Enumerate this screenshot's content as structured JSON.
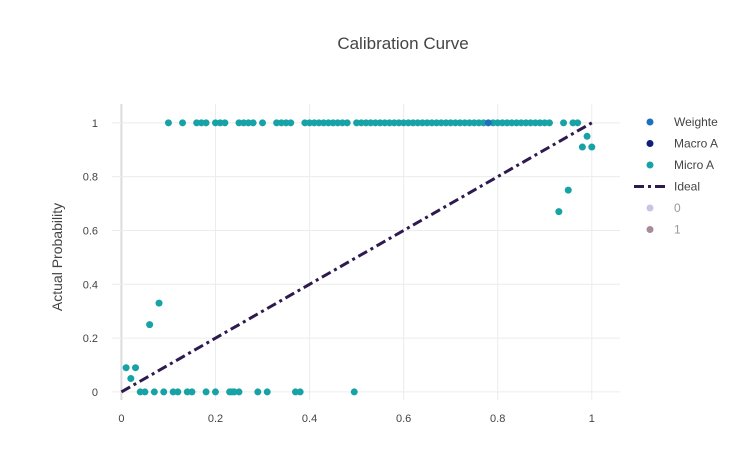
{
  "chart_data": {
    "type": "scatter",
    "title": "Calibration Curve",
    "xlabel": "",
    "ylabel": "Actual Probability",
    "xlim": [
      -0.02,
      1.06
    ],
    "ylim": [
      -0.03,
      1.07
    ],
    "x_ticks": [
      0,
      0.2,
      0.4,
      0.6,
      0.8,
      1
    ],
    "x_tick_labels": [
      "0",
      "0.2",
      "0.4",
      "0.6",
      "0.8",
      "1"
    ],
    "y_ticks": [
      0,
      0.2,
      0.4,
      0.6,
      0.8,
      1
    ],
    "y_tick_labels": [
      "0",
      "0.2",
      "0.4",
      "0.6",
      "0.8",
      "1"
    ],
    "grid": true,
    "legend_position": "right",
    "series": [
      {
        "name": "Weighted Avg",
        "legend_label": "Weighte",
        "color": "#1f6fba",
        "marker": "circle",
        "points": [
          [
            0.78,
            1
          ]
        ]
      },
      {
        "name": "Macro Avg",
        "legend_label": "Macro A",
        "color": "#0d1f7a",
        "marker": "circle",
        "points": []
      },
      {
        "name": "Micro Avg",
        "legend_label": "Micro A",
        "color": "#17a2a6",
        "marker": "circle",
        "points": [
          [
            0.01,
            0.09
          ],
          [
            0.03,
            0.09
          ],
          [
            0.02,
            0.05
          ],
          [
            0.06,
            0.25
          ],
          [
            0.08,
            0.33
          ],
          [
            0.04,
            0
          ],
          [
            0.05,
            0
          ],
          [
            0.07,
            0
          ],
          [
            0.09,
            0
          ],
          [
            0.11,
            0
          ],
          [
            0.12,
            0
          ],
          [
            0.14,
            0
          ],
          [
            0.15,
            0
          ],
          [
            0.18,
            0
          ],
          [
            0.2,
            0
          ],
          [
            0.23,
            0
          ],
          [
            0.235,
            0
          ],
          [
            0.24,
            0
          ],
          [
            0.25,
            0
          ],
          [
            0.29,
            0
          ],
          [
            0.31,
            0
          ],
          [
            0.37,
            0
          ],
          [
            0.38,
            0
          ],
          [
            0.495,
            0
          ],
          [
            0.1,
            1
          ],
          [
            0.13,
            1
          ],
          [
            0.16,
            1
          ],
          [
            0.17,
            1
          ],
          [
            0.18,
            1
          ],
          [
            0.2,
            1
          ],
          [
            0.21,
            1
          ],
          [
            0.22,
            1
          ],
          [
            0.25,
            1
          ],
          [
            0.26,
            1
          ],
          [
            0.27,
            1
          ],
          [
            0.28,
            1
          ],
          [
            0.3,
            1
          ],
          [
            0.33,
            1
          ],
          [
            0.34,
            1
          ],
          [
            0.35,
            1
          ],
          [
            0.36,
            1
          ],
          [
            0.39,
            1
          ],
          [
            0.4,
            1
          ],
          [
            0.41,
            1
          ],
          [
            0.42,
            1
          ],
          [
            0.43,
            1
          ],
          [
            0.44,
            1
          ],
          [
            0.45,
            1
          ],
          [
            0.46,
            1
          ],
          [
            0.47,
            1
          ],
          [
            0.48,
            1
          ],
          [
            0.5,
            1
          ],
          [
            0.51,
            1
          ],
          [
            0.52,
            1
          ],
          [
            0.53,
            1
          ],
          [
            0.54,
            1
          ],
          [
            0.55,
            1
          ],
          [
            0.56,
            1
          ],
          [
            0.57,
            1
          ],
          [
            0.58,
            1
          ],
          [
            0.59,
            1
          ],
          [
            0.6,
            1
          ],
          [
            0.61,
            1
          ],
          [
            0.62,
            1
          ],
          [
            0.63,
            1
          ],
          [
            0.64,
            1
          ],
          [
            0.65,
            1
          ],
          [
            0.66,
            1
          ],
          [
            0.67,
            1
          ],
          [
            0.68,
            1
          ],
          [
            0.69,
            1
          ],
          [
            0.7,
            1
          ],
          [
            0.71,
            1
          ],
          [
            0.72,
            1
          ],
          [
            0.73,
            1
          ],
          [
            0.74,
            1
          ],
          [
            0.75,
            1
          ],
          [
            0.76,
            1
          ],
          [
            0.77,
            1
          ],
          [
            0.79,
            1
          ],
          [
            0.8,
            1
          ],
          [
            0.81,
            1
          ],
          [
            0.82,
            1
          ],
          [
            0.83,
            1
          ],
          [
            0.84,
            1
          ],
          [
            0.85,
            1
          ],
          [
            0.86,
            1
          ],
          [
            0.87,
            1
          ],
          [
            0.88,
            1
          ],
          [
            0.89,
            1
          ],
          [
            0.9,
            1
          ],
          [
            0.91,
            1
          ],
          [
            0.94,
            1
          ],
          [
            0.96,
            1
          ],
          [
            0.97,
            1
          ],
          [
            0.93,
            0.67
          ],
          [
            0.95,
            0.75
          ],
          [
            0.98,
            0.91
          ],
          [
            0.99,
            0.95
          ],
          [
            1.0,
            0.91
          ]
        ]
      },
      {
        "name": "Ideal",
        "legend_label": "Ideal",
        "color": "#2e1a4f",
        "type": "line",
        "dash": "dashdot",
        "points": [
          [
            0,
            0
          ],
          [
            1,
            1
          ]
        ]
      },
      {
        "name": "0",
        "legend_label": "0",
        "color": "#c9c3e6",
        "marker": "circle",
        "points": [],
        "hidden": true
      },
      {
        "name": "1",
        "legend_label": "1",
        "color": "#a88a9a",
        "marker": "circle",
        "points": [],
        "hidden": true
      }
    ]
  }
}
